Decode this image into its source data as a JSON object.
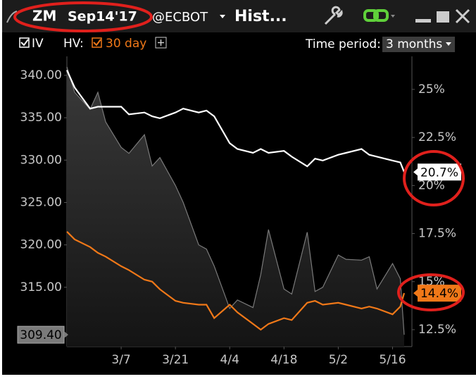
{
  "window": {
    "symbol": "ZM",
    "contract": "Sep14'17",
    "exchange": "@ECBOT",
    "title": "Hist..."
  },
  "toolbar": {
    "iv_label": "IV",
    "hv_label": "HV:",
    "hv_period": "30 day",
    "period_label": "Time period:",
    "period_value": "3 months"
  },
  "chart_data": {
    "type": "line",
    "x": [
      "2/21",
      "2/23",
      "2/27",
      "3/1",
      "3/3",
      "3/7",
      "3/9",
      "3/13",
      "3/15",
      "3/17",
      "3/21",
      "3/23",
      "3/27",
      "3/29",
      "3/31",
      "4/4",
      "4/6",
      "4/10",
      "4/12",
      "4/14",
      "4/18",
      "4/20",
      "4/24",
      "4/26",
      "4/28",
      "5/2",
      "5/4",
      "5/8",
      "5/10",
      "5/12",
      "5/16",
      "5/18",
      "5/19"
    ],
    "xlim": [
      "2/21",
      "5/21"
    ],
    "xticks": [
      "3/7",
      "3/21",
      "4/4",
      "4/18",
      "5/2",
      "5/16"
    ],
    "ylim": [
      308,
      342.24
    ],
    "yticks": [
      {
        "value": 315,
        "label": "315.00"
      },
      {
        "value": 320,
        "label": "320.00"
      },
      {
        "value": 325,
        "label": "325.00"
      },
      {
        "value": 330,
        "label": "330.00"
      },
      {
        "value": 335,
        "label": "335.00"
      },
      {
        "value": 340,
        "label": "340.00"
      }
    ],
    "y2lim": [
      11.62,
      26.72
    ],
    "y2ticks": [
      {
        "value": 12.5,
        "label": "12.5%"
      },
      {
        "value": 15,
        "label": "15%"
      },
      {
        "value": 17.5,
        "label": "17.5%"
      },
      {
        "value": 20,
        "label": "20%"
      },
      {
        "value": 22.5,
        "label": "22.5%"
      },
      {
        "value": 25,
        "label": "25%"
      }
    ],
    "grid": false,
    "series": [
      {
        "color": "#7a7a7a",
        "area": true,
        "end_label": "309.40",
        "values": [
          341,
          338,
          336,
          338,
          334.5,
          331.5,
          330.8,
          333,
          329.3,
          330.3,
          327,
          325,
          320,
          319.5,
          317.5,
          312.5,
          313.5,
          312.6,
          316.5,
          321.8,
          314.8,
          314.2,
          321.5,
          314.5,
          315,
          318.8,
          318.3,
          318.2,
          318.6,
          314.8,
          317.8,
          316,
          309.4
        ]
      },
      {
        "name": "IV",
        "color": "#ffffff",
        "axis": "y2",
        "end_label": "20.7%",
        "values": [
          26.0,
          25.1,
          24.0,
          24.1,
          24.1,
          24.1,
          23.7,
          23.8,
          23.6,
          23.5,
          23.8,
          24.0,
          23.8,
          23.9,
          23.6,
          22.2,
          21.9,
          21.7,
          21.9,
          21.7,
          21.8,
          21.5,
          21.0,
          21.4,
          21.3,
          21.6,
          21.7,
          21.9,
          21.6,
          21.5,
          21.3,
          21.2,
          20.7
        ]
      },
      {
        "name": "30 day",
        "color": "#f07818",
        "axis": "y2",
        "end_label": "14.4%",
        "values": [
          17.6,
          17.2,
          16.8,
          16.5,
          16.3,
          15.8,
          15.6,
          15.1,
          15.0,
          14.6,
          14.0,
          13.9,
          13.8,
          13.8,
          13.1,
          13.8,
          13.4,
          12.8,
          12.5,
          12.8,
          13.1,
          13.0,
          13.9,
          14.0,
          13.8,
          13.9,
          13.8,
          13.6,
          13.7,
          13.6,
          13.3,
          13.7,
          14.4
        ]
      }
    ]
  }
}
